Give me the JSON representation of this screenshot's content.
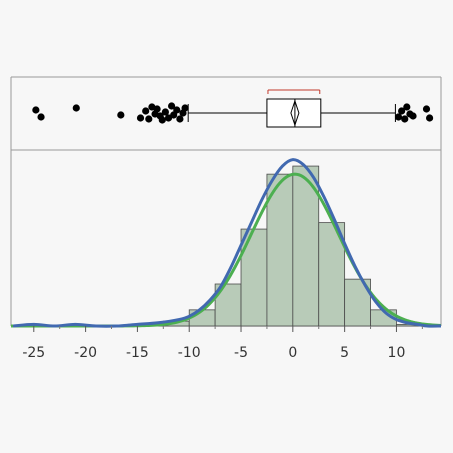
{
  "chart_data": {
    "type": "histogram",
    "xlim": [
      -27.2,
      14.3
    ],
    "x_ticks": [
      -25,
      -20,
      -15,
      -10,
      -5,
      0,
      5,
      10
    ],
    "x_tick_labels": [
      "-25",
      "-20",
      "-15",
      "-10",
      "-5",
      "0",
      "5",
      "10"
    ],
    "grid": false,
    "colors": {
      "bars_fill": "#b8cbb8",
      "bars_stroke": "#4a4a4a",
      "normal_fit": "#4caf50",
      "density_curve": "#4169b0",
      "points": "#000000",
      "bracket": "#c0392b",
      "frame": "#9a9a9a"
    },
    "histogram": {
      "bin_width": 2.5,
      "bins": [
        {
          "start": -15.0,
          "end": -12.5,
          "count": 1
        },
        {
          "start": -12.5,
          "end": -10.0,
          "count": 3
        },
        {
          "start": -10.0,
          "end": -7.5,
          "count": 10
        },
        {
          "start": -7.5,
          "end": -5.0,
          "count": 26
        },
        {
          "start": -5.0,
          "end": -2.5,
          "count": 60
        },
        {
          "start": -2.5,
          "end": 0.0,
          "count": 94
        },
        {
          "start": 0.0,
          "end": 2.5,
          "count": 99
        },
        {
          "start": 2.5,
          "end": 5.0,
          "count": 64
        },
        {
          "start": 5.0,
          "end": 7.5,
          "count": 29
        },
        {
          "start": 7.5,
          "end": 10.0,
          "count": 10
        },
        {
          "start": 10.0,
          "end": 12.5,
          "count": 1
        }
      ],
      "count_max": 104
    },
    "normal_fit": {
      "mean": 0.2,
      "sd": 4.2,
      "peak": 94
    },
    "density_curve": {
      "x": [
        -27,
        -25,
        -23,
        -21,
        -19,
        -17,
        -15,
        -13,
        -11,
        -10,
        -9,
        -8,
        -7,
        -6,
        -5,
        -4,
        -3,
        -2,
        -1,
        0,
        1,
        2,
        3,
        4,
        5,
        6,
        7,
        8,
        9,
        10,
        11,
        12,
        13,
        14.3
      ],
      "y": [
        0,
        1,
        0,
        1,
        0,
        0,
        1,
        2,
        4,
        6,
        10,
        16,
        24,
        36,
        50,
        64,
        78,
        90,
        99,
        103,
        100,
        92,
        80,
        66,
        51,
        37,
        25,
        15,
        8,
        4,
        2,
        1,
        0,
        0
      ]
    },
    "boxplot": {
      "q1": -2.5,
      "median": 0.2,
      "q3": 2.7,
      "mean": 0.2,
      "whisker_low": -10.1,
      "whisker_high": 9.9,
      "shortest_half": [
        -2.4,
        2.6
      ],
      "outliers": [
        -24.8,
        -24.3,
        -20.9,
        -16.6,
        -14.7,
        -14.2,
        -13.9,
        -13.6,
        -13.3,
        -13.1,
        -12.8,
        -12.6,
        -12.3,
        -12.0,
        -11.7,
        -11.5,
        -11.2,
        -10.9,
        -10.6,
        -10.4,
        10.2,
        10.5,
        10.8,
        11.0,
        11.3,
        11.6,
        12.9,
        13.2
      ]
    }
  }
}
